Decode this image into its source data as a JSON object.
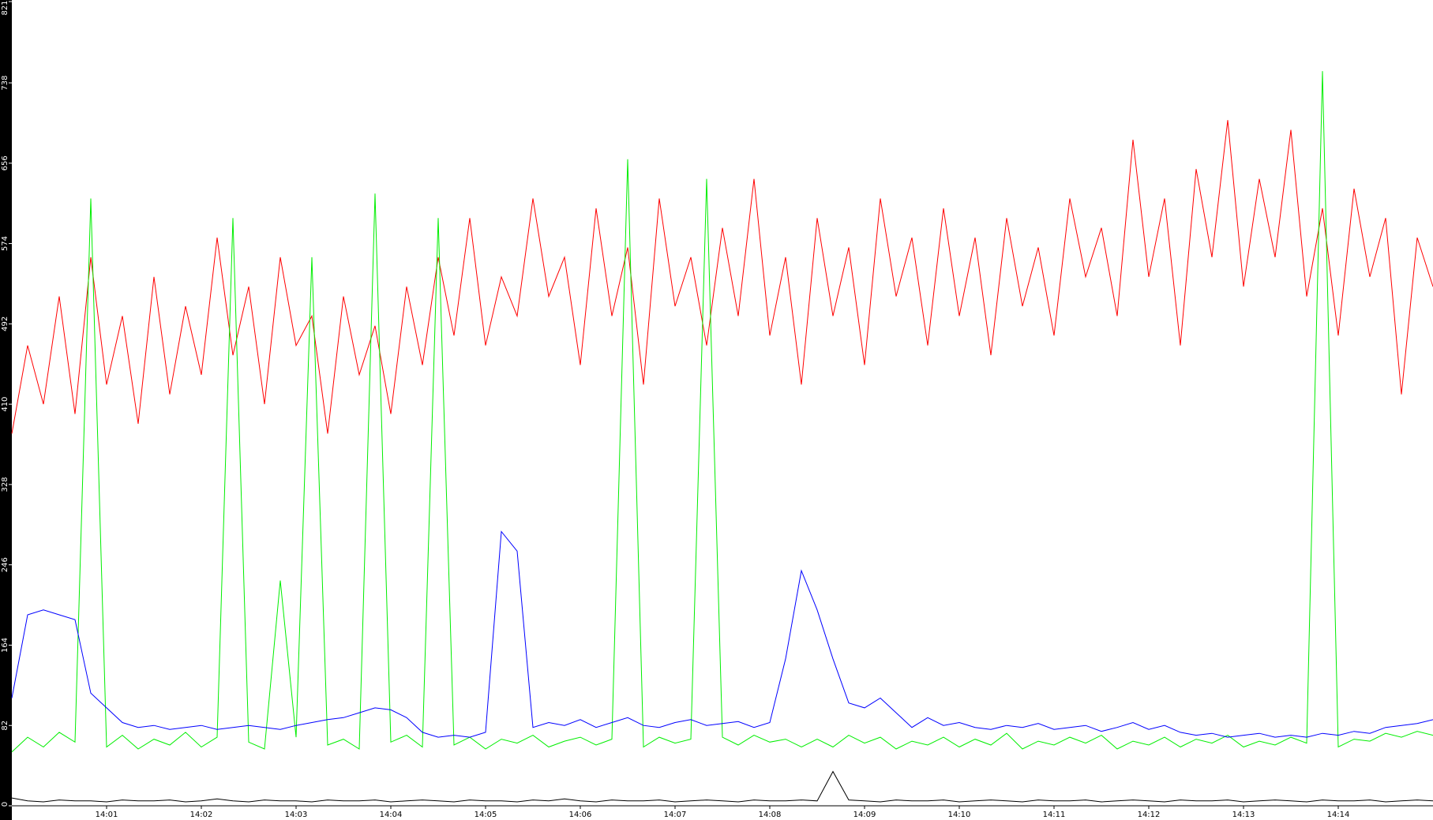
{
  "chart_data": {
    "type": "line",
    "categories": [
      null,
      null,
      null,
      null,
      null,
      null,
      "14:01",
      null,
      null,
      null,
      null,
      null,
      "14:02",
      null,
      null,
      null,
      null,
      null,
      "14:03",
      null,
      null,
      null,
      null,
      null,
      "14:04",
      null,
      null,
      null,
      null,
      null,
      "14:05",
      null,
      null,
      null,
      null,
      null,
      "14:06",
      null,
      null,
      null,
      null,
      null,
      "14:07",
      null,
      null,
      null,
      null,
      null,
      "14:08",
      null,
      null,
      null,
      null,
      null,
      "14:09",
      null,
      null,
      null,
      null,
      null,
      "14:10",
      null,
      null,
      null,
      null,
      null,
      "14:11",
      null,
      null,
      null,
      null,
      null,
      "14:12",
      null,
      null,
      null,
      null,
      null,
      "14:13",
      null,
      null,
      null,
      null,
      null,
      "14:14",
      null,
      null,
      null,
      null,
      null,
      null
    ],
    "series": [
      {
        "color": "#ff0000",
        "values": [
          380,
          470,
          410,
          520,
          400,
          560,
          430,
          500,
          390,
          540,
          420,
          510,
          440,
          580,
          460,
          530,
          410,
          560,
          470,
          500,
          380,
          520,
          440,
          490,
          400,
          530,
          450,
          560,
          480,
          600,
          470,
          540,
          500,
          620,
          520,
          560,
          450,
          610,
          500,
          570,
          430,
          620,
          510,
          560,
          470,
          590,
          500,
          640,
          480,
          560,
          430,
          600,
          500,
          570,
          450,
          620,
          520,
          580,
          470,
          610,
          500,
          580,
          460,
          600,
          510,
          570,
          480,
          620,
          540,
          590,
          500,
          680,
          540,
          620,
          470,
          650,
          560,
          700,
          530,
          640,
          560,
          690,
          520,
          610,
          480,
          630,
          540,
          600,
          420,
          580,
          530
        ]
      },
      {
        "color": "#00ee00",
        "values": [
          55,
          70,
          60,
          75,
          65,
          620,
          60,
          72,
          58,
          68,
          62,
          75,
          60,
          70,
          600,
          65,
          58,
          230,
          70,
          560,
          62,
          68,
          58,
          625,
          65,
          72,
          60,
          600,
          62,
          70,
          58,
          68,
          64,
          72,
          60,
          66,
          70,
          62,
          68,
          660,
          60,
          70,
          64,
          68,
          640,
          70,
          62,
          72,
          65,
          68,
          60,
          68,
          60,
          72,
          64,
          70,
          58,
          66,
          62,
          70,
          60,
          68,
          62,
          74,
          58,
          66,
          62,
          70,
          64,
          72,
          58,
          66,
          62,
          70,
          60,
          68,
          64,
          72,
          60,
          66,
          62,
          70,
          64,
          750,
          60,
          68,
          66,
          74,
          70,
          76,
          72
        ]
      },
      {
        "color": "#0000ff",
        "values": [
          110,
          195,
          200,
          195,
          190,
          115,
          100,
          85,
          80,
          82,
          78,
          80,
          82,
          78,
          80,
          82,
          80,
          78,
          82,
          85,
          88,
          90,
          95,
          100,
          98,
          90,
          75,
          70,
          72,
          70,
          75,
          280,
          260,
          80,
          85,
          82,
          88,
          80,
          85,
          90,
          82,
          80,
          85,
          88,
          82,
          84,
          86,
          80,
          85,
          150,
          240,
          200,
          150,
          105,
          100,
          110,
          95,
          80,
          90,
          82,
          85,
          80,
          78,
          82,
          80,
          84,
          78,
          80,
          82,
          76,
          80,
          85,
          78,
          82,
          75,
          72,
          74,
          70,
          72,
          74,
          70,
          72,
          70,
          74,
          72,
          76,
          74,
          80,
          82,
          84,
          88
        ]
      },
      {
        "color": "#000000",
        "values": [
          8,
          5,
          4,
          6,
          5,
          5,
          4,
          6,
          5,
          5,
          6,
          4,
          5,
          7,
          5,
          4,
          6,
          5,
          5,
          4,
          6,
          5,
          5,
          6,
          4,
          5,
          6,
          5,
          4,
          6,
          5,
          5,
          4,
          6,
          5,
          7,
          5,
          4,
          6,
          5,
          5,
          6,
          4,
          5,
          6,
          5,
          4,
          6,
          5,
          5,
          6,
          5,
          35,
          6,
          5,
          4,
          6,
          5,
          5,
          6,
          4,
          5,
          6,
          5,
          4,
          6,
          5,
          5,
          6,
          4,
          5,
          6,
          5,
          4,
          6,
          5,
          5,
          6,
          4,
          5,
          6,
          5,
          4,
          6,
          5,
          5,
          6,
          4,
          5,
          6,
          5
        ]
      }
    ],
    "ylim": [
      0,
      821
    ],
    "yticks": [
      0,
      82,
      164,
      246,
      328,
      410,
      492,
      574,
      656,
      738,
      821
    ]
  }
}
